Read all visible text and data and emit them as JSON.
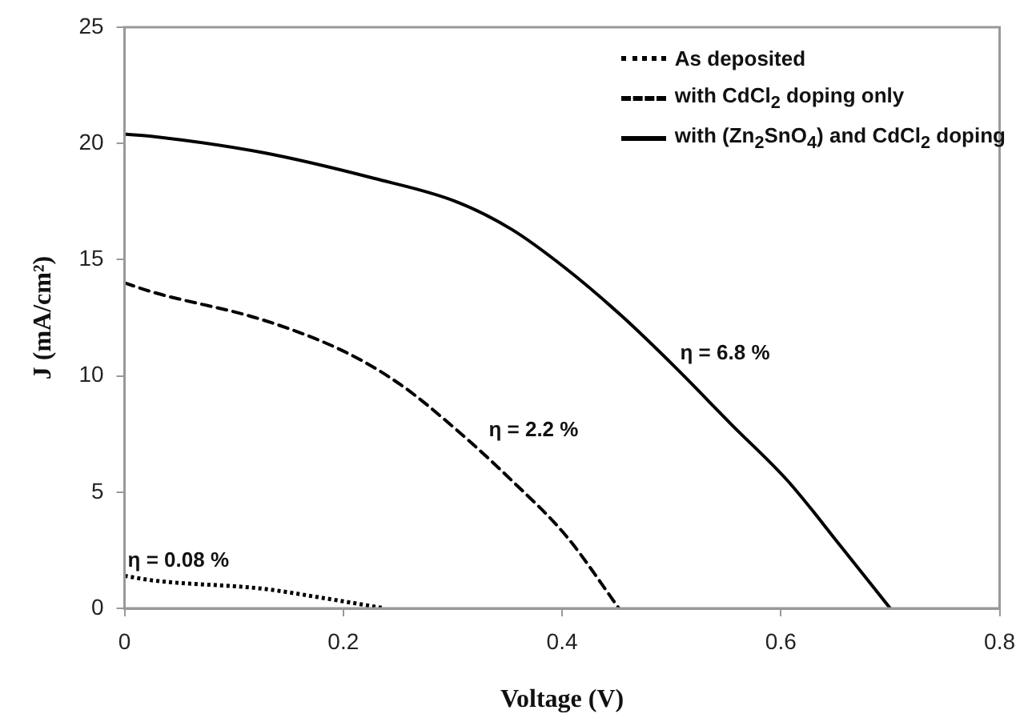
{
  "chart_data": {
    "type": "line",
    "xlabel": "Voltage (V)",
    "ylabel": "J (mA/cm²)",
    "xlim": [
      0,
      0.8
    ],
    "xticks": [
      0,
      0.2,
      0.4,
      0.6,
      0.8
    ],
    "ylim": [
      0,
      25
    ],
    "yticks": [
      0,
      5,
      10,
      15,
      20,
      25
    ],
    "grid": false,
    "legend": "top right",
    "marker": "none",
    "series": [
      {
        "name": "As deposited",
        "color": "#000000",
        "line_style": "dotted",
        "x": [
          0,
          0.026,
          0.127,
          0.177,
          0.238
        ],
        "values": [
          1.4,
          1.2,
          0.84,
          0.48,
          0
        ]
      },
      {
        "name": "with CdCl$_{2}$ doping only",
        "color": "#000000",
        "line_style": "dashed",
        "x": [
          0,
          0.026,
          0.127,
          0.203,
          0.253,
          0.303,
          0.354,
          0.404,
          0.452
        ],
        "values": [
          14,
          13.6,
          12.4,
          11,
          9.6,
          7.7,
          5.5,
          3.1,
          0
        ]
      },
      {
        "name": "with (Zn$_{2}$SnO$_{4}$) and CdCl$_{2}$ doping",
        "color": "#000000",
        "line_style": "solid",
        "x": [
          0,
          0.026,
          0.127,
          0.228,
          0.303,
          0.354,
          0.404,
          0.454,
          0.505,
          0.555,
          0.606,
          0.656,
          0.7
        ],
        "values": [
          20.4,
          20.3,
          19.6,
          18.5,
          17.5,
          16.3,
          14.6,
          12.6,
          10.3,
          7.9,
          5.5,
          2.6,
          0
        ]
      }
    ],
    "annotations": [
      {
        "text": "η = 6.8 %",
        "x": 0.505,
        "y": 10.3
      },
      {
        "text": "η = 2.2 %",
        "x": 0.33,
        "y": 7.0
      },
      {
        "text": "η = 0.08 %",
        "x": 0,
        "y": 1.4
      }
    ]
  }
}
